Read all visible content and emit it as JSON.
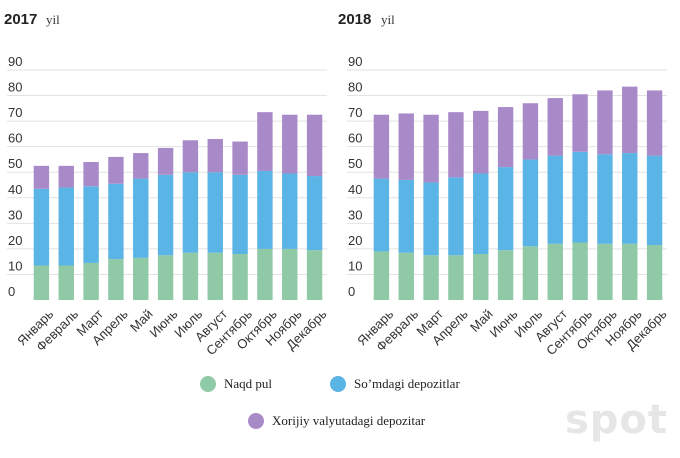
{
  "chart_data": [
    {
      "type": "bar",
      "stacked": true,
      "title": "2017",
      "title_unit": "yil",
      "categories": [
        "Январь",
        "Февраль",
        "Март",
        "Апрель",
        "Май",
        "Июнь",
        "Июль",
        "Август",
        "Сентябрь",
        "Октябрь",
        "Ноябрь",
        "Декабрь"
      ],
      "series": [
        {
          "name": "Naqd pul",
          "color": "#8fc9a6",
          "values": [
            13.5,
            13.5,
            14.5,
            16,
            16.5,
            17.5,
            18.5,
            18.5,
            18,
            20,
            20,
            19.5
          ]
        },
        {
          "name": "So’mdagi depozitlar",
          "color": "#5ab4e6",
          "values": [
            30,
            30.5,
            30,
            29.5,
            31,
            31.5,
            31.5,
            31.5,
            31,
            30.5,
            29.5,
            29
          ]
        },
        {
          "name": "Xorijiy valyutadagi depozitar",
          "color": "#a98ac9",
          "values": [
            9,
            8.5,
            9.5,
            10.5,
            10,
            10.5,
            12.5,
            13,
            13,
            23,
            23,
            24
          ]
        }
      ],
      "ylim": [
        0,
        90
      ],
      "yticks": [
        0,
        10,
        20,
        30,
        40,
        50,
        60,
        70,
        80,
        90
      ],
      "grid": true
    },
    {
      "type": "bar",
      "stacked": true,
      "title": "2018",
      "title_unit": "yil",
      "categories": [
        "Январь",
        "Февраль",
        "Март",
        "Апрель",
        "Май",
        "Июнь",
        "Июль",
        "Август",
        "Сентябрь",
        "Октябрь",
        "Ноябрь",
        "Декабрь"
      ],
      "series": [
        {
          "name": "Naqd pul",
          "color": "#8fc9a6",
          "values": [
            19,
            18.5,
            17.5,
            17.5,
            18,
            19.5,
            21,
            22,
            22.5,
            22,
            22,
            21.5
          ]
        },
        {
          "name": "So’mdagi depozitlar",
          "color": "#5ab4e6",
          "values": [
            28.5,
            28.5,
            28.5,
            30.5,
            31.5,
            32.5,
            34,
            34.5,
            35.5,
            35,
            35.5,
            35
          ]
        },
        {
          "name": "Xorijiy valyutadagi depozitar",
          "color": "#a98ac9",
          "values": [
            25,
            26,
            26.5,
            25.5,
            24.5,
            23.5,
            22,
            22.5,
            22.5,
            25,
            26,
            25.5
          ]
        }
      ],
      "ylim": [
        0,
        90
      ],
      "yticks": [
        0,
        10,
        20,
        30,
        40,
        50,
        60,
        70,
        80,
        90
      ],
      "grid": true
    }
  ],
  "legend": {
    "items": [
      {
        "label": "Naqd pul",
        "color": "#8fc9a6"
      },
      {
        "label": "So’mdagi depozitlar",
        "color": "#5ab4e6"
      },
      {
        "label": "Xorijiy valyutadagi depozitar",
        "color": "#a98ac9"
      }
    ]
  },
  "watermark": "spot"
}
